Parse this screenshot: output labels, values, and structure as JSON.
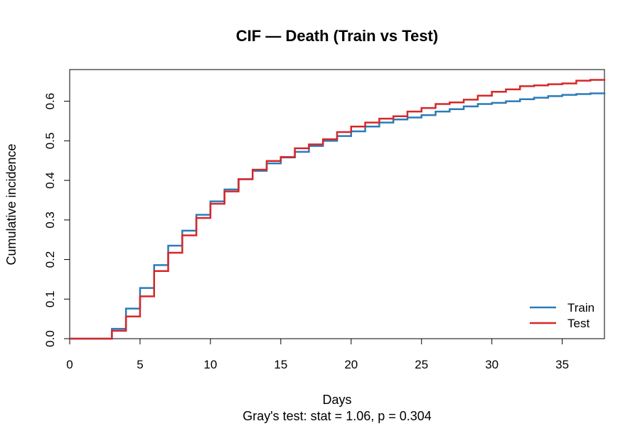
{
  "chart_data": {
    "type": "line",
    "step": true,
    "title": "CIF — Death (Train vs Test)",
    "xlabel": "Days",
    "ylabel": "Cumulative incidence",
    "subtitle": "Gray's test: stat = 1.06, p = 0.304",
    "xlim": [
      0,
      38
    ],
    "ylim": [
      0,
      0.68
    ],
    "x_ticks": [
      0,
      5,
      10,
      15,
      20,
      25,
      30,
      35
    ],
    "y_ticks": [
      0.0,
      0.1,
      0.2,
      0.3,
      0.4,
      0.5,
      0.6
    ],
    "y_tick_labels": [
      "0.0",
      "0.1",
      "0.2",
      "0.3",
      "0.4",
      "0.5",
      "0.6"
    ],
    "grid": false,
    "legend_position": "bottom-right",
    "x": [
      0,
      1,
      2,
      3,
      4,
      5,
      6,
      7,
      8,
      9,
      10,
      11,
      12,
      13,
      14,
      15,
      16,
      17,
      18,
      19,
      20,
      21,
      22,
      23,
      24,
      25,
      26,
      27,
      28,
      29,
      30,
      31,
      32,
      33,
      34,
      35,
      36,
      37,
      38
    ],
    "series": [
      {
        "name": "Train",
        "color": "#2B7BB9",
        "values": [
          0.0,
          0.0,
          0.0,
          0.025,
          0.076,
          0.128,
          0.186,
          0.235,
          0.273,
          0.313,
          0.347,
          0.377,
          0.403,
          0.424,
          0.443,
          0.458,
          0.472,
          0.487,
          0.5,
          0.512,
          0.524,
          0.536,
          0.546,
          0.554,
          0.559,
          0.565,
          0.574,
          0.58,
          0.587,
          0.593,
          0.596,
          0.6,
          0.605,
          0.609,
          0.613,
          0.616,
          0.618,
          0.62,
          0.622
        ]
      },
      {
        "name": "Test",
        "color": "#D62728",
        "values": [
          0.0,
          0.0,
          0.0,
          0.02,
          0.056,
          0.107,
          0.171,
          0.217,
          0.261,
          0.305,
          0.341,
          0.372,
          0.403,
          0.427,
          0.449,
          0.459,
          0.481,
          0.491,
          0.504,
          0.522,
          0.536,
          0.546,
          0.556,
          0.562,
          0.574,
          0.583,
          0.593,
          0.597,
          0.604,
          0.614,
          0.624,
          0.63,
          0.638,
          0.64,
          0.643,
          0.645,
          0.652,
          0.654,
          0.656
        ]
      }
    ]
  }
}
